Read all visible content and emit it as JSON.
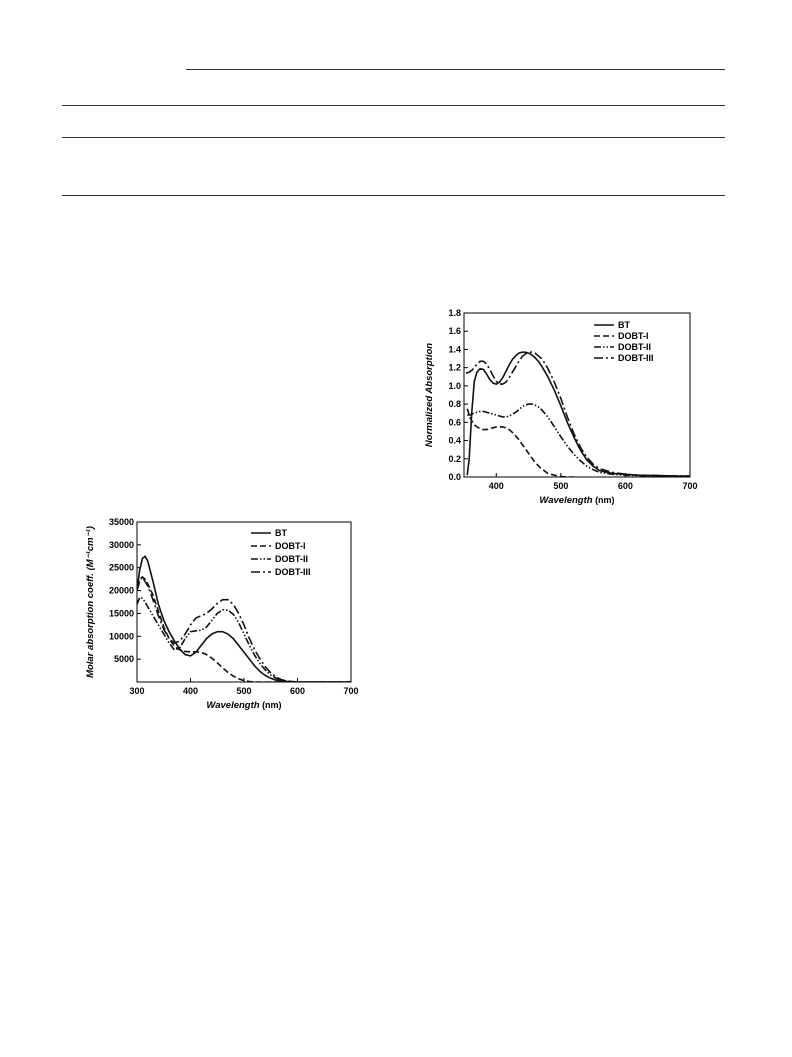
{
  "charts": [
    {
      "type": "line",
      "xlabel": "Wavelength",
      "xunit": " (nm)",
      "ylabel": "Normalized Absorption",
      "xlim": [
        350,
        700
      ],
      "ylim": [
        0.0,
        1.8
      ],
      "xticks": [
        400,
        500,
        600,
        700
      ],
      "yticks": [
        0.0,
        0.2,
        0.4,
        0.6,
        0.8,
        1.0,
        1.2,
        1.4,
        1.6,
        1.8
      ],
      "yticks_decimals": 1,
      "grid": false,
      "legend_position": "top-right",
      "series": [
        {
          "name": "BT",
          "dash": "solid",
          "x": [
            355,
            358,
            362,
            366,
            370,
            375,
            380,
            385,
            390,
            395,
            400,
            405,
            410,
            415,
            420,
            425,
            430,
            435,
            440,
            445,
            450,
            455,
            460,
            465,
            470,
            480,
            490,
            500,
            510,
            520,
            530,
            540,
            550,
            560,
            580,
            600,
            620,
            650,
            680,
            700
          ],
          "y": [
            0.02,
            0.2,
            0.7,
            1.05,
            1.15,
            1.19,
            1.18,
            1.13,
            1.07,
            1.03,
            1.02,
            1.04,
            1.09,
            1.16,
            1.23,
            1.29,
            1.33,
            1.36,
            1.37,
            1.37,
            1.36,
            1.34,
            1.31,
            1.27,
            1.22,
            1.1,
            0.95,
            0.78,
            0.6,
            0.44,
            0.3,
            0.19,
            0.12,
            0.07,
            0.04,
            0.03,
            0.02,
            0.015,
            0.01,
            0.01
          ]
        },
        {
          "name": "DOBT-I",
          "dash": "dash",
          "x": [
            355,
            360,
            365,
            370,
            375,
            380,
            385,
            390,
            395,
            400,
            405,
            410,
            415,
            420,
            425,
            430,
            435,
            440,
            450,
            460,
            470,
            480,
            490,
            500,
            510,
            520
          ],
          "y": [
            0.75,
            0.64,
            0.58,
            0.55,
            0.53,
            0.52,
            0.52,
            0.53,
            0.54,
            0.55,
            0.55,
            0.55,
            0.54,
            0.52,
            0.49,
            0.45,
            0.41,
            0.36,
            0.26,
            0.16,
            0.09,
            0.04,
            0.02,
            0.005,
            0.0,
            0.0
          ]
        },
        {
          "name": "DOBT-II",
          "dash": "dashdotdot",
          "x": [
            355,
            360,
            365,
            370,
            375,
            380,
            385,
            390,
            395,
            400,
            405,
            410,
            415,
            420,
            425,
            430,
            435,
            440,
            445,
            450,
            455,
            460,
            465,
            470,
            480,
            490,
            500,
            510,
            520,
            530,
            540,
            550,
            560,
            580,
            600,
            620,
            650,
            680,
            700
          ],
          "y": [
            0.68,
            0.68,
            0.7,
            0.71,
            0.72,
            0.72,
            0.71,
            0.7,
            0.69,
            0.68,
            0.67,
            0.66,
            0.66,
            0.67,
            0.69,
            0.71,
            0.74,
            0.77,
            0.79,
            0.8,
            0.8,
            0.79,
            0.77,
            0.74,
            0.66,
            0.55,
            0.44,
            0.34,
            0.25,
            0.18,
            0.12,
            0.08,
            0.05,
            0.03,
            0.02,
            0.015,
            0.01,
            0.01,
            0.01
          ]
        },
        {
          "name": "DOBT-III",
          "dash": "dashdot",
          "x": [
            353,
            358,
            362,
            366,
            370,
            375,
            380,
            385,
            390,
            395,
            400,
            405,
            410,
            415,
            420,
            425,
            430,
            435,
            440,
            445,
            450,
            455,
            460,
            465,
            470,
            475,
            480,
            490,
            500,
            510,
            520,
            530,
            540,
            550,
            560,
            580,
            600,
            620,
            650,
            680,
            700
          ],
          "y": [
            1.14,
            1.15,
            1.17,
            1.2,
            1.24,
            1.27,
            1.27,
            1.24,
            1.18,
            1.11,
            1.05,
            1.02,
            1.02,
            1.04,
            1.09,
            1.15,
            1.21,
            1.27,
            1.32,
            1.35,
            1.37,
            1.37,
            1.36,
            1.33,
            1.3,
            1.25,
            1.19,
            1.04,
            0.86,
            0.66,
            0.48,
            0.33,
            0.22,
            0.14,
            0.09,
            0.05,
            0.03,
            0.02,
            0.015,
            0.01,
            0.01
          ]
        }
      ]
    },
    {
      "type": "line",
      "xlabel": "Wavelength",
      "xunit": " (nm)",
      "ylabel": "Molar absorption coeff. (M⁻¹cm⁻¹)",
      "xlim": [
        300,
        700
      ],
      "ylim": [
        0,
        35000
      ],
      "xticks": [
        300,
        400,
        500,
        600,
        700
      ],
      "yticks": [
        5000,
        10000,
        15000,
        20000,
        25000,
        30000,
        35000
      ],
      "yticks_decimals": 0,
      "grid": false,
      "legend_position": "top-right",
      "series": [
        {
          "name": "BT",
          "dash": "solid",
          "x": [
            300,
            305,
            310,
            315,
            320,
            330,
            340,
            350,
            360,
            370,
            380,
            390,
            400,
            410,
            420,
            430,
            440,
            450,
            460,
            470,
            480,
            490,
            500,
            510,
            520,
            530,
            540,
            550,
            560,
            570,
            580,
            590,
            600,
            650,
            700
          ],
          "y": [
            20000,
            24500,
            27000,
            27500,
            26500,
            22000,
            17000,
            13500,
            11000,
            9000,
            7200,
            6000,
            5700,
            6500,
            8000,
            9500,
            10500,
            11000,
            11000,
            10500,
            9500,
            8000,
            6500,
            5000,
            3500,
            2300,
            1400,
            800,
            400,
            200,
            100,
            50,
            0,
            0,
            0
          ]
        },
        {
          "name": "DOBT-I",
          "dash": "dash",
          "x": [
            300,
            305,
            310,
            315,
            320,
            330,
            340,
            350,
            360,
            370,
            380,
            390,
            400,
            410,
            420,
            430,
            440,
            450,
            460,
            470,
            480,
            490,
            500,
            510,
            520,
            540,
            560,
            600,
            700
          ],
          "y": [
            21000,
            22500,
            23000,
            22500,
            21500,
            19000,
            15500,
            12000,
            9500,
            7800,
            7000,
            6700,
            6600,
            6600,
            6500,
            6000,
            5200,
            4200,
            3100,
            2100,
            1300,
            700,
            300,
            100,
            0,
            0,
            0,
            0,
            0
          ]
        },
        {
          "name": "DOBT-II",
          "dash": "dashdotdot",
          "x": [
            300,
            305,
            310,
            315,
            320,
            330,
            340,
            350,
            360,
            370,
            380,
            390,
            400,
            410,
            420,
            430,
            440,
            450,
            460,
            470,
            480,
            490,
            500,
            510,
            520,
            530,
            540,
            550,
            560,
            570,
            580,
            590,
            600,
            650,
            700
          ],
          "y": [
            17000,
            18500,
            18300,
            17500,
            16500,
            14500,
            12500,
            10500,
            8500,
            7000,
            7500,
            9500,
            11000,
            11200,
            11300,
            12000,
            13500,
            15000,
            15800,
            15700,
            14800,
            13000,
            10500,
            8000,
            5800,
            4000,
            2600,
            1500,
            800,
            400,
            200,
            100,
            0,
            0,
            0
          ]
        },
        {
          "name": "DOBT-III",
          "dash": "dashdot",
          "x": [
            300,
            305,
            310,
            315,
            320,
            330,
            340,
            350,
            360,
            370,
            380,
            390,
            400,
            410,
            420,
            430,
            440,
            450,
            460,
            470,
            480,
            490,
            500,
            510,
            520,
            530,
            540,
            550,
            560,
            570,
            580,
            590,
            600,
            650,
            700
          ],
          "y": [
            20000,
            22000,
            23000,
            22000,
            21000,
            18000,
            14500,
            11500,
            9500,
            8500,
            9000,
            10500,
            12500,
            14000,
            14500,
            15000,
            16000,
            17200,
            18000,
            18000,
            17000,
            15000,
            12500,
            9500,
            7000,
            5000,
            3300,
            2000,
            1100,
            500,
            200,
            100,
            0,
            0,
            0
          ]
        }
      ]
    }
  ]
}
